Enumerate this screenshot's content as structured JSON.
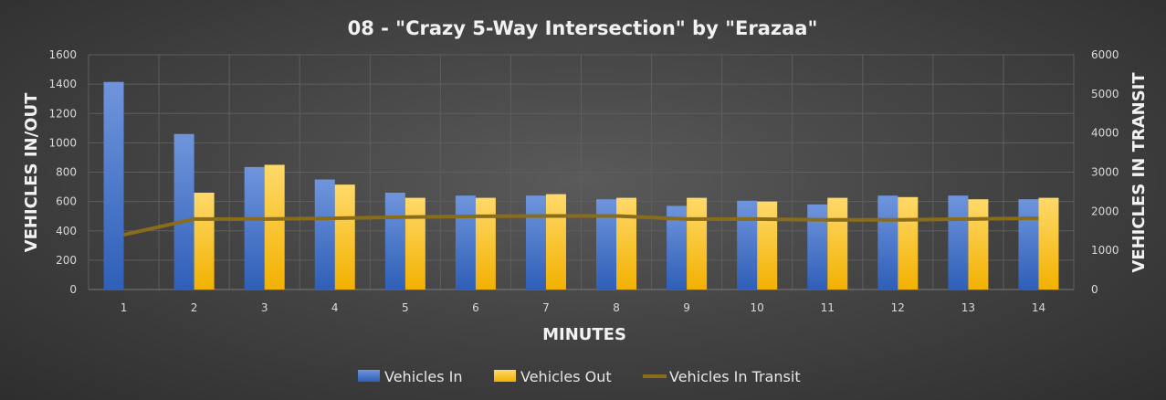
{
  "chart_data": {
    "type": "bar",
    "title": "08 - \"Crazy 5-Way Intersection\" by \"Erazaa\"",
    "xlabel": "MINUTES",
    "ylabel": "VEHICLES IN/OUT",
    "y2label": "VEHICLES IN TRANSIT",
    "categories": [
      "1",
      "2",
      "3",
      "4",
      "5",
      "6",
      "7",
      "8",
      "9",
      "10",
      "11",
      "12",
      "13",
      "14"
    ],
    "ylim": [
      0,
      1600
    ],
    "yticks": [
      0,
      200,
      400,
      600,
      800,
      1000,
      1200,
      1400,
      1600
    ],
    "y2lim": [
      0,
      6000
    ],
    "y2ticks": [
      0,
      1000,
      2000,
      3000,
      4000,
      5000,
      6000
    ],
    "grid": true,
    "legend_position": "bottom",
    "series": [
      {
        "name": "Vehicles In",
        "type": "bar",
        "axis": "left",
        "color": "#4472c4",
        "values": [
          1415,
          1060,
          835,
          750,
          660,
          640,
          640,
          615,
          570,
          605,
          580,
          640,
          640,
          615
        ]
      },
      {
        "name": "Vehicles Out",
        "type": "bar",
        "axis": "left",
        "color": "#ffc000",
        "values": [
          0,
          660,
          850,
          715,
          625,
          625,
          650,
          625,
          625,
          600,
          625,
          630,
          615,
          625
        ]
      },
      {
        "name": "Vehicles In Transit",
        "type": "line",
        "axis": "right",
        "color": "#8a6d1a",
        "values": [
          1400,
          1800,
          1800,
          1820,
          1850,
          1870,
          1880,
          1880,
          1800,
          1800,
          1780,
          1780,
          1800,
          1820
        ]
      }
    ]
  }
}
